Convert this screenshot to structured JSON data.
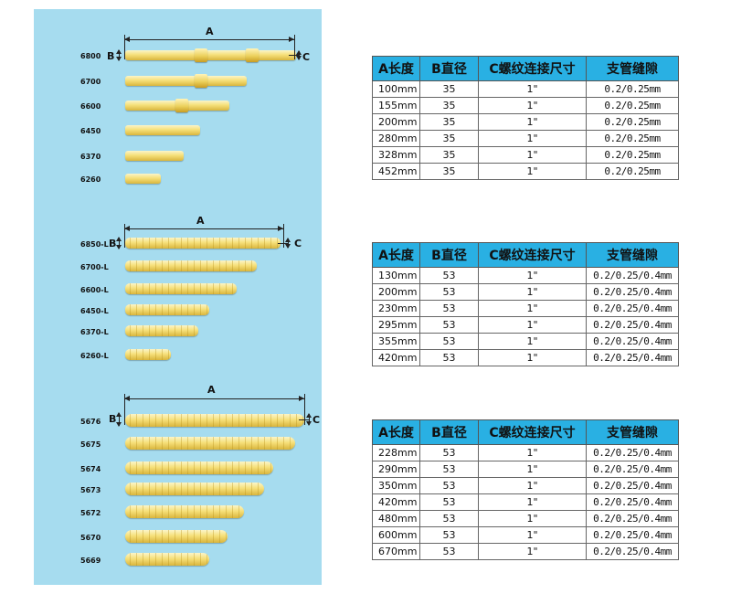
{
  "diagram": {
    "group1": {
      "dims": {
        "a": "A",
        "b": "B",
        "c": "C"
      },
      "models": [
        "6800",
        "6700",
        "6600",
        "6450",
        "6370",
        "6260"
      ]
    },
    "group2": {
      "dims": {
        "a": "A",
        "b": "B",
        "c": "C"
      },
      "models": [
        "6850-L",
        "6700-L",
        "6600-L",
        "6450-L",
        "6370-L",
        "6260-L"
      ]
    },
    "group3": {
      "dims": {
        "a": "A",
        "b": "B",
        "c": "C"
      },
      "models": [
        "5676",
        "5675",
        "5674",
        "5673",
        "5672",
        "5670",
        "5669"
      ]
    }
  },
  "tables": [
    {
      "headers": [
        "A长度",
        "B直径",
        "C螺纹连接尺寸",
        "支管缝隙"
      ],
      "rows": [
        [
          "100mm",
          "35",
          "1\"",
          "0.2/0.25mm"
        ],
        [
          "155mm",
          "35",
          "1\"",
          "0.2/0.25mm"
        ],
        [
          "200mm",
          "35",
          "1\"",
          "0.2/0.25mm"
        ],
        [
          "280mm",
          "35",
          "1\"",
          "0.2/0.25mm"
        ],
        [
          "328mm",
          "35",
          "1\"",
          "0.2/0.25mm"
        ],
        [
          "452mm",
          "35",
          "1\"",
          "0.2/0.25mm"
        ]
      ]
    },
    {
      "headers": [
        "A长度",
        "B直径",
        "C螺纹连接尺寸",
        "支管缝隙"
      ],
      "rows": [
        [
          "130mm",
          "53",
          "1\"",
          "0.2/0.25/0.4mm"
        ],
        [
          "200mm",
          "53",
          "1\"",
          "0.2/0.25/0.4mm"
        ],
        [
          "230mm",
          "53",
          "1\"",
          "0.2/0.25/0.4mm"
        ],
        [
          "295mm",
          "53",
          "1\"",
          "0.2/0.25/0.4mm"
        ],
        [
          "355mm",
          "53",
          "1\"",
          "0.2/0.25/0.4mm"
        ],
        [
          "420mm",
          "53",
          "1\"",
          "0.2/0.25/0.4mm"
        ]
      ]
    },
    {
      "headers": [
        "A长度",
        "B直径",
        "C螺纹连接尺寸",
        "支管缝隙"
      ],
      "rows": [
        [
          "228mm",
          "53",
          "1\"",
          "0.2/0.25/0.4mm"
        ],
        [
          "290mm",
          "53",
          "1\"",
          "0.2/0.25/0.4mm"
        ],
        [
          "350mm",
          "53",
          "1\"",
          "0.2/0.25/0.4mm"
        ],
        [
          "420mm",
          "53",
          "1\"",
          "0.2/0.25/0.4mm"
        ],
        [
          "480mm",
          "53",
          "1\"",
          "0.2/0.25/0.4mm"
        ],
        [
          "600mm",
          "53",
          "1\"",
          "0.2/0.25/0.4mm"
        ],
        [
          "670mm",
          "53",
          "1\"",
          "0.2/0.25/0.4mm"
        ]
      ]
    }
  ]
}
